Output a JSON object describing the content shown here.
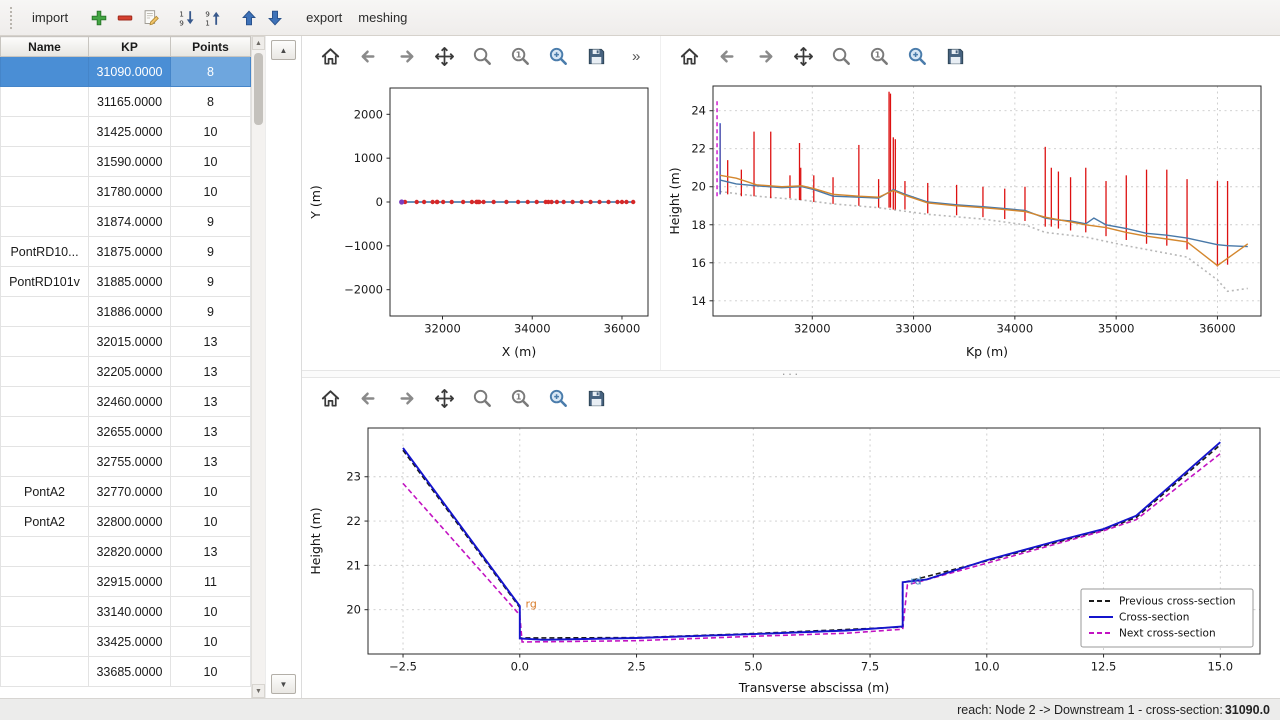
{
  "main_toolbar": {
    "import_label": "import",
    "export_label": "export",
    "meshing_label": "meshing"
  },
  "table": {
    "headers": [
      "Name",
      "KP",
      "Points"
    ],
    "selected_row": 0,
    "rows": [
      {
        "name": "",
        "kp": "31090.0000",
        "points": "8"
      },
      {
        "name": "",
        "kp": "31165.0000",
        "points": "8"
      },
      {
        "name": "",
        "kp": "31425.0000",
        "points": "10"
      },
      {
        "name": "",
        "kp": "31590.0000",
        "points": "10"
      },
      {
        "name": "",
        "kp": "31780.0000",
        "points": "10"
      },
      {
        "name": "",
        "kp": "31874.0000",
        "points": "9"
      },
      {
        "name": "PontRD10...",
        "kp": "31875.0000",
        "points": "9"
      },
      {
        "name": "PontRD101v",
        "kp": "31885.0000",
        "points": "9"
      },
      {
        "name": "",
        "kp": "31886.0000",
        "points": "9"
      },
      {
        "name": "",
        "kp": "32015.0000",
        "points": "13"
      },
      {
        "name": "",
        "kp": "32205.0000",
        "points": "13"
      },
      {
        "name": "",
        "kp": "32460.0000",
        "points": "13"
      },
      {
        "name": "",
        "kp": "32655.0000",
        "points": "13"
      },
      {
        "name": "",
        "kp": "32755.0000",
        "points": "13"
      },
      {
        "name": "PontA2",
        "kp": "32770.0000",
        "points": "10"
      },
      {
        "name": "PontA2",
        "kp": "32800.0000",
        "points": "10"
      },
      {
        "name": "",
        "kp": "32820.0000",
        "points": "13"
      },
      {
        "name": "",
        "kp": "32915.0000",
        "points": "11"
      },
      {
        "name": "",
        "kp": "33140.0000",
        "points": "10"
      },
      {
        "name": "",
        "kp": "33425.0000",
        "points": "10"
      },
      {
        "name": "",
        "kp": "33685.0000",
        "points": "10"
      }
    ]
  },
  "plot_toolbar": {
    "buttons": [
      "home",
      "back",
      "forward",
      "pan",
      "zoom",
      "zoom-original",
      "zoom-area",
      "save"
    ],
    "overflow_label": "»"
  },
  "status": {
    "prefix": "reach: Node 2 -> Downstream 1 - cross-section: ",
    "value": "31090.0"
  },
  "colors": {
    "selection_blue": "#4a8ed5",
    "cross_section_blue": "#1414cc",
    "next_magenta": "#c213c2",
    "previous_black": "#1a1a1a",
    "profile_red": "#dd1111",
    "bank_orange": "#d4872e",
    "bank_blue": "#4878a8"
  },
  "chart_data": [
    {
      "id": "trace",
      "type": "line",
      "title": "",
      "xlabel": "X (m)",
      "ylabel": "Y (m)",
      "xlim": [
        30830,
        36580
      ],
      "ylim": [
        -2600,
        2600
      ],
      "xticks": [
        32000,
        34000,
        36000
      ],
      "xtick_labels": [
        "32000",
        "34000",
        "36000"
      ],
      "yticks": [
        -2000,
        -1000,
        0,
        1000,
        2000
      ],
      "ytick_labels": [
        "−2000",
        "−1000",
        "0",
        "1000",
        "2000"
      ],
      "grid": false,
      "legend_position": "none",
      "series": [
        {
          "name": "river-axis",
          "type": "line",
          "color": "#2e6da4",
          "width": 1.4,
          "points": [
            [
              31090,
              0
            ],
            [
              36250,
              0
            ]
          ]
        },
        {
          "name": "cross-section-positions",
          "type": "scatter",
          "color": "#d62728",
          "radius": 2.2,
          "y": 0,
          "xs": [
            31090,
            31165,
            31425,
            31590,
            31780,
            31874,
            31885,
            32015,
            32205,
            32460,
            32655,
            32755,
            32770,
            32800,
            32820,
            32915,
            33140,
            33425,
            33685,
            33900,
            34100,
            34300,
            34360,
            34430,
            34550,
            34700,
            34900,
            35100,
            35300,
            35500,
            35700,
            35900,
            36000,
            36100,
            36250
          ]
        },
        {
          "name": "selected-cross-section-point",
          "type": "scatter",
          "color": "#7a3fbf",
          "radius": 2.6,
          "y": 0,
          "xs": [
            31090
          ]
        }
      ]
    },
    {
      "id": "longitudinal-profile",
      "type": "line",
      "title": "",
      "xlabel": "Kp (m)",
      "ylabel": "Height (m)",
      "xlim": [
        31020,
        36430
      ],
      "ylim": [
        13.2,
        25.3
      ],
      "xticks": [
        32000,
        33000,
        34000,
        35000,
        36000
      ],
      "xtick_labels": [
        "32000",
        "33000",
        "34000",
        "35000",
        "36000"
      ],
      "yticks": [
        14,
        16,
        18,
        20,
        22,
        24
      ],
      "ytick_labels": [
        "14",
        "16",
        "18",
        "20",
        "22",
        "24"
      ],
      "grid": true,
      "legend_position": "none",
      "series": [
        {
          "name": "thalweg-dotted",
          "type": "line",
          "color": "#b8b8b8",
          "width": 1.6,
          "dash": "2 3",
          "points": [
            [
              31090,
              19.75
            ],
            [
              31450,
              19.5
            ],
            [
              31900,
              19.3
            ],
            [
              32205,
              19.1
            ],
            [
              32655,
              18.9
            ],
            [
              33140,
              18.55
            ],
            [
              33685,
              18.3
            ],
            [
              34100,
              18.0
            ],
            [
              34300,
              17.6
            ],
            [
              34700,
              17.35
            ],
            [
              35100,
              16.9
            ],
            [
              35500,
              16.5
            ],
            [
              35700,
              16.3
            ],
            [
              36000,
              15.1
            ],
            [
              36100,
              14.5
            ],
            [
              36300,
              14.65
            ]
          ]
        },
        {
          "name": "cross-section-extents",
          "type": "vlines",
          "color": "#dd1111",
          "width": 1.3,
          "lines": [
            [
              31090,
              19.6,
              23.3
            ],
            [
              31165,
              19.6,
              21.4
            ],
            [
              31300,
              19.5,
              20.9
            ],
            [
              31425,
              19.5,
              22.9
            ],
            [
              31590,
              19.4,
              22.9
            ],
            [
              31780,
              19.4,
              20.6
            ],
            [
              31874,
              19.3,
              22.3
            ],
            [
              31886,
              19.3,
              21.0
            ],
            [
              32015,
              19.2,
              20.6
            ],
            [
              32205,
              19.1,
              20.5
            ],
            [
              32460,
              19.0,
              22.2
            ],
            [
              32655,
              18.9,
              20.4
            ],
            [
              32758,
              18.9,
              25.0
            ],
            [
              32772,
              18.9,
              24.9
            ],
            [
              32800,
              18.8,
              22.6
            ],
            [
              32820,
              18.8,
              22.5
            ],
            [
              32915,
              18.8,
              20.3
            ],
            [
              33140,
              18.6,
              20.2
            ],
            [
              33425,
              18.5,
              20.1
            ],
            [
              33685,
              18.4,
              20.0
            ],
            [
              33900,
              18.3,
              19.9
            ],
            [
              34100,
              18.2,
              20.0
            ],
            [
              34300,
              17.9,
              22.1
            ],
            [
              34360,
              17.9,
              21.0
            ],
            [
              34430,
              17.8,
              20.8
            ],
            [
              34550,
              17.7,
              20.5
            ],
            [
              34700,
              17.6,
              21.0
            ],
            [
              34900,
              17.4,
              20.3
            ],
            [
              35100,
              17.2,
              20.6
            ],
            [
              35300,
              17.0,
              20.9
            ],
            [
              35500,
              16.9,
              20.9
            ],
            [
              35700,
              16.7,
              20.4
            ],
            [
              36000,
              15.8,
              20.3
            ],
            [
              36100,
              15.9,
              20.3
            ]
          ]
        },
        {
          "name": "selected-extent",
          "type": "vlines",
          "color": "#2255cc",
          "width": 1.2,
          "lines": [
            [
              31090,
              19.6,
              23.35
            ]
          ]
        },
        {
          "name": "current-position-marker",
          "type": "vlines",
          "color": "#d020d0",
          "width": 1.5,
          "dash": "4 3",
          "lines": [
            [
              31060,
              19.5,
              24.6
            ]
          ]
        },
        {
          "name": "left-bank-line",
          "type": "line",
          "color": "#4878a8",
          "width": 1.4,
          "points": [
            [
              31090,
              20.35
            ],
            [
              31250,
              20.15
            ],
            [
              31450,
              20.05
            ],
            [
              31700,
              19.95
            ],
            [
              31900,
              20.0
            ],
            [
              32015,
              19.85
            ],
            [
              32205,
              19.5
            ],
            [
              32460,
              19.45
            ],
            [
              32655,
              19.4
            ],
            [
              32800,
              19.85
            ],
            [
              32915,
              19.6
            ],
            [
              33140,
              19.2
            ],
            [
              33425,
              19.05
            ],
            [
              33685,
              18.95
            ],
            [
              33900,
              18.85
            ],
            [
              34100,
              18.75
            ],
            [
              34300,
              18.35
            ],
            [
              34430,
              18.25
            ],
            [
              34550,
              18.2
            ],
            [
              34700,
              18.05
            ],
            [
              34780,
              18.35
            ],
            [
              34900,
              18.0
            ],
            [
              35100,
              17.8
            ],
            [
              35300,
              17.55
            ],
            [
              35500,
              17.45
            ],
            [
              35700,
              17.3
            ],
            [
              36000,
              16.95
            ],
            [
              36100,
              16.9
            ],
            [
              36300,
              16.85
            ]
          ]
        },
        {
          "name": "right-bank-line",
          "type": "line",
          "color": "#d4872e",
          "width": 1.4,
          "points": [
            [
              31090,
              20.6
            ],
            [
              31250,
              20.45
            ],
            [
              31450,
              20.1
            ],
            [
              31700,
              20.0
            ],
            [
              31900,
              20.05
            ],
            [
              32015,
              19.9
            ],
            [
              32205,
              19.6
            ],
            [
              32460,
              19.5
            ],
            [
              32655,
              19.45
            ],
            [
              32800,
              19.8
            ],
            [
              32915,
              19.55
            ],
            [
              33140,
              19.15
            ],
            [
              33425,
              19.0
            ],
            [
              33685,
              18.9
            ],
            [
              33900,
              18.8
            ],
            [
              34100,
              18.7
            ],
            [
              34300,
              18.4
            ],
            [
              34550,
              18.15
            ],
            [
              34700,
              18.0
            ],
            [
              34900,
              17.85
            ],
            [
              35100,
              17.6
            ],
            [
              35300,
              17.4
            ],
            [
              35500,
              17.25
            ],
            [
              35700,
              17.1
            ],
            [
              36000,
              15.85
            ],
            [
              36300,
              17.0
            ]
          ]
        }
      ]
    },
    {
      "id": "cross-section",
      "type": "line",
      "title": "",
      "xlabel": "Transverse abscissa (m)",
      "ylabel": "Height (m)",
      "xlim": [
        -3.25,
        15.85
      ],
      "ylim": [
        19.0,
        24.1
      ],
      "xticks": [
        -2.5,
        0,
        2.5,
        5,
        7.5,
        10,
        12.5,
        15
      ],
      "xtick_labels": [
        "−2.5",
        "0.0",
        "2.5",
        "5.0",
        "7.5",
        "10.0",
        "12.5",
        "15.0"
      ],
      "yticks": [
        20,
        21,
        22,
        23
      ],
      "ytick_labels": [
        "20",
        "21",
        "22",
        "23"
      ],
      "grid": true,
      "legend_position": "lower right",
      "series": [
        {
          "name": "previous-cross-section",
          "type": "line",
          "color": "#1a1a1a",
          "width": 1.6,
          "dash": "5 3",
          "points": [
            [
              -2.5,
              23.6
            ],
            [
              0,
              20.05
            ],
            [
              0,
              19.36
            ],
            [
              2.5,
              19.37
            ],
            [
              5,
              19.46
            ],
            [
              8.2,
              19.61
            ],
            [
              8.2,
              20.61
            ],
            [
              10,
              21.1
            ],
            [
              12.5,
              21.8
            ],
            [
              13.2,
              22.08
            ],
            [
              15,
              23.72
            ]
          ]
        },
        {
          "name": "next-cross-section",
          "type": "line",
          "color": "#c213c2",
          "width": 1.6,
          "dash": "5 3",
          "points": [
            [
              -2.5,
              22.85
            ],
            [
              0,
              19.88
            ],
            [
              0.05,
              19.27
            ],
            [
              2.5,
              19.3
            ],
            [
              5,
              19.4
            ],
            [
              7,
              19.47
            ],
            [
              8.2,
              19.56
            ],
            [
              8.3,
              20.56
            ],
            [
              10,
              21.05
            ],
            [
              12.5,
              21.78
            ],
            [
              13.2,
              22.03
            ],
            [
              15,
              23.52
            ]
          ]
        },
        {
          "name": "cross-section",
          "type": "line",
          "color": "#1414cc",
          "width": 1.9,
          "points": [
            [
              -2.5,
              23.65
            ],
            [
              0,
              20.08
            ],
            [
              0,
              19.35
            ],
            [
              0.5,
              19.32
            ],
            [
              2.5,
              19.36
            ],
            [
              5,
              19.45
            ],
            [
              7,
              19.53
            ],
            [
              8.2,
              19.62
            ],
            [
              8.2,
              20.62
            ],
            [
              8.7,
              20.68
            ],
            [
              10,
              21.12
            ],
            [
              11.5,
              21.55
            ],
            [
              12.5,
              21.82
            ],
            [
              13.2,
              22.12
            ],
            [
              15,
              23.78
            ]
          ]
        }
      ],
      "annotations": [
        {
          "text": "rg",
          "x": 0.08,
          "y": 20.0,
          "color": "#d97e2e"
        },
        {
          "text": "rd",
          "x": 8.32,
          "y": 20.52,
          "color": "#3f85c0"
        }
      ],
      "legend": {
        "entries": [
          {
            "label": "Previous cross-section",
            "color": "#1a1a1a",
            "dash": "5 3",
            "width": 2
          },
          {
            "label": "Cross-section",
            "color": "#1414cc",
            "width": 2
          },
          {
            "label": "Next cross-section",
            "color": "#c213c2",
            "dash": "5 3",
            "width": 2
          }
        ]
      }
    }
  ]
}
